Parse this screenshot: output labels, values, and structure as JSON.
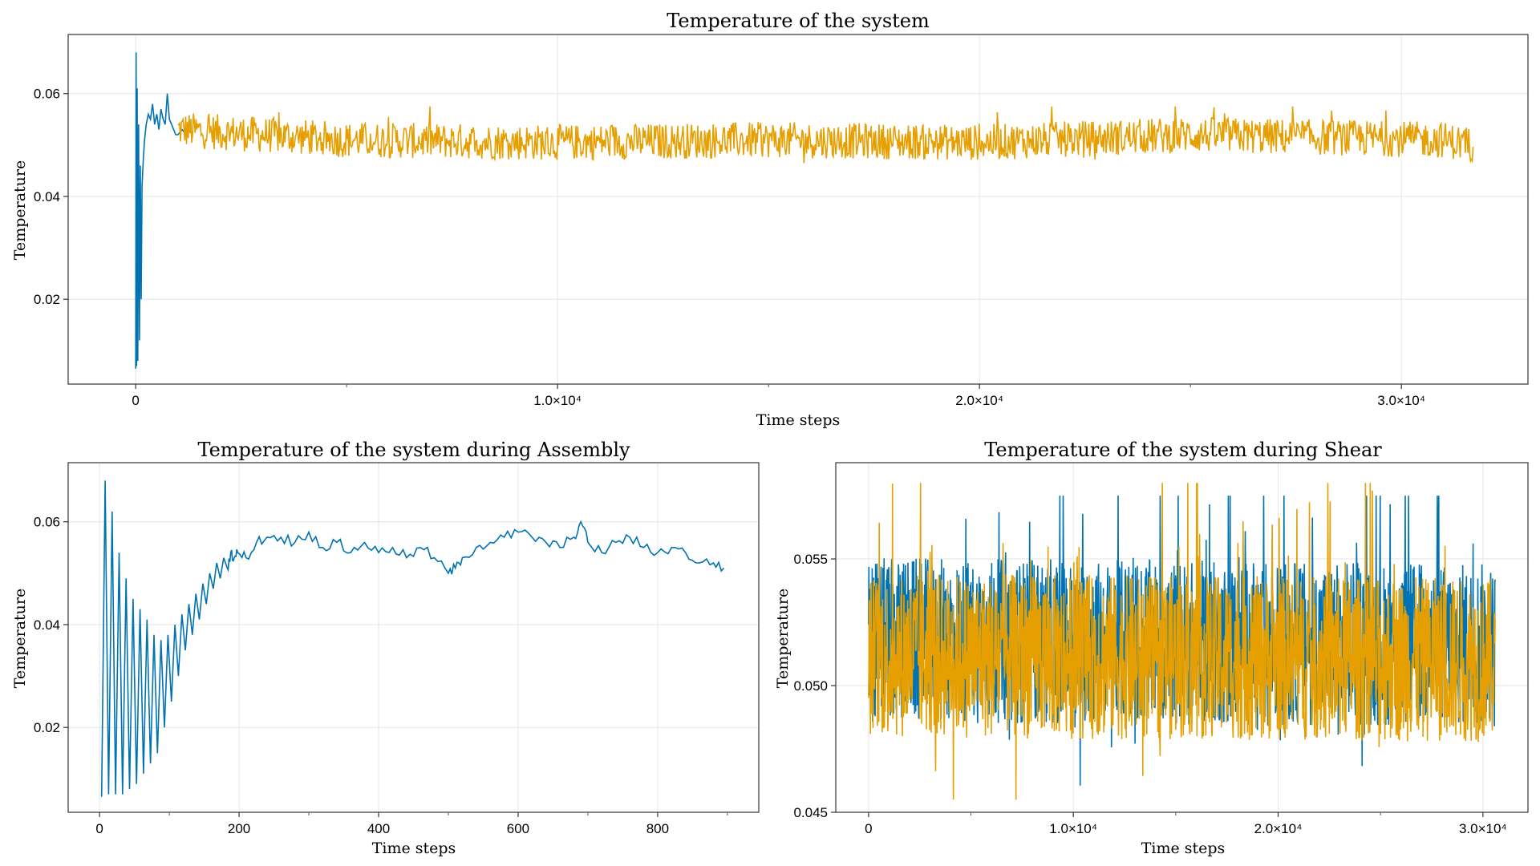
{
  "colors": {
    "series1": "#0072b2",
    "series2": "#e69f00"
  },
  "chart_data": [
    {
      "type": "line",
      "title": "Temperature of the system",
      "xlabel": "Time steps",
      "ylabel": "Temperature",
      "xlim": [
        -1600,
        33000
      ],
      "ylim": [
        0.0035,
        0.0715
      ],
      "xticks": [
        0,
        10000,
        20000,
        30000
      ],
      "xtick_labels": [
        "0",
        "1.0×10⁴",
        "2.0×10⁴",
        "3.0×10⁴"
      ],
      "yticks": [
        0.02,
        0.04,
        0.06
      ],
      "ytick_labels": [
        "0.02",
        "0.04",
        "0.06"
      ],
      "grid": true,
      "series": [
        {
          "color": "#0072b2",
          "x": [
            0,
            10,
            20,
            35,
            50,
            70,
            90,
            110,
            130,
            150,
            180,
            210,
            250,
            300,
            350,
            400,
            450,
            500,
            550,
            600,
            650,
            700,
            750,
            800,
            850,
            900,
            950,
            1000,
            1100,
            1200
          ],
          "y": [
            0.0065,
            0.068,
            0.007,
            0.061,
            0.008,
            0.054,
            0.012,
            0.046,
            0.02,
            0.042,
            0.047,
            0.051,
            0.054,
            0.056,
            0.055,
            0.058,
            0.054,
            0.056,
            0.053,
            0.057,
            0.055,
            0.054,
            0.06,
            0.055,
            0.054,
            0.053,
            0.052,
            0.052,
            0.053,
            0.052
          ]
        },
        {
          "color": "#e69f00",
          "x": [
            1000,
            5000,
            10000,
            15000,
            20000,
            25000,
            31000,
            31700
          ],
          "y": [
            0.053,
            0.051,
            0.0505,
            0.051,
            0.0505,
            0.052,
            0.051,
            0.05
          ],
          "band": [
            0.0465,
            0.0575
          ]
        }
      ]
    },
    {
      "type": "line",
      "title": "Temperature of the system during Assembly",
      "xlabel": "Time steps",
      "ylabel": "Temperature",
      "xlim": [
        -45,
        945
      ],
      "ylim": [
        0.0035,
        0.0715
      ],
      "xticks": [
        0,
        200,
        400,
        600,
        800
      ],
      "xtick_labels": [
        "0",
        "200",
        "400",
        "600",
        "800"
      ],
      "yticks": [
        0.02,
        0.04,
        0.06
      ],
      "ytick_labels": [
        "0.02",
        "0.04",
        "0.06"
      ],
      "grid": true,
      "series": [
        {
          "color": "#0072b2",
          "x": [
            3,
            8,
            13,
            18,
            23,
            28,
            33,
            38,
            43,
            48,
            53,
            58,
            63,
            68,
            73,
            78,
            83,
            88,
            93,
            98,
            103,
            108,
            113,
            118,
            123,
            128,
            133,
            138,
            143,
            148,
            153,
            158,
            163,
            168,
            173,
            178,
            183,
            188,
            193,
            198,
            210,
            225,
            240,
            260,
            280,
            300,
            320,
            340,
            360,
            380,
            400,
            420,
            440,
            460,
            480,
            500,
            510,
            520,
            540,
            560,
            580,
            600,
            620,
            640,
            660,
            680,
            690,
            700,
            720,
            740,
            760,
            780,
            800,
            820,
            840,
            860,
            880,
            895
          ],
          "y": [
            0.0065,
            0.068,
            0.007,
            0.062,
            0.007,
            0.054,
            0.007,
            0.049,
            0.008,
            0.045,
            0.009,
            0.043,
            0.011,
            0.041,
            0.013,
            0.038,
            0.015,
            0.037,
            0.02,
            0.038,
            0.025,
            0.04,
            0.03,
            0.042,
            0.035,
            0.044,
            0.038,
            0.046,
            0.041,
            0.048,
            0.044,
            0.05,
            0.047,
            0.052,
            0.049,
            0.053,
            0.051,
            0.054,
            0.053,
            0.054,
            0.053,
            0.056,
            0.057,
            0.057,
            0.056,
            0.058,
            0.055,
            0.056,
            0.054,
            0.056,
            0.054,
            0.055,
            0.053,
            0.055,
            0.053,
            0.05,
            0.051,
            0.053,
            0.055,
            0.056,
            0.057,
            0.058,
            0.057,
            0.056,
            0.055,
            0.057,
            0.06,
            0.056,
            0.054,
            0.056,
            0.057,
            0.055,
            0.054,
            0.055,
            0.054,
            0.052,
            0.052,
            0.051
          ]
        }
      ]
    },
    {
      "type": "line",
      "title": "Temperature of the system during Shear",
      "xlabel": "Time steps",
      "ylabel": "Temperature",
      "xlim": [
        -1600,
        32200
      ],
      "ylim": [
        0.045,
        0.0588
      ],
      "xticks": [
        0,
        10000,
        20000,
        30000
      ],
      "xtick_labels": [
        "0",
        "1.0×10⁴",
        "2.0×10⁴",
        "3.0×10⁴"
      ],
      "yticks": [
        0.045,
        0.05,
        0.055
      ],
      "ytick_labels": [
        "0.045",
        "0.050",
        "0.055"
      ],
      "grid": true,
      "series": [
        {
          "color": "#0072b2",
          "x": [
            0,
            30600
          ],
          "y": [
            0.0515,
            0.0513
          ]
        },
        {
          "color": "#e69f00",
          "x": [
            0,
            30600
          ],
          "y": [
            0.0512,
            0.051
          ],
          "band": [
            0.0455,
            0.058
          ]
        }
      ]
    }
  ]
}
